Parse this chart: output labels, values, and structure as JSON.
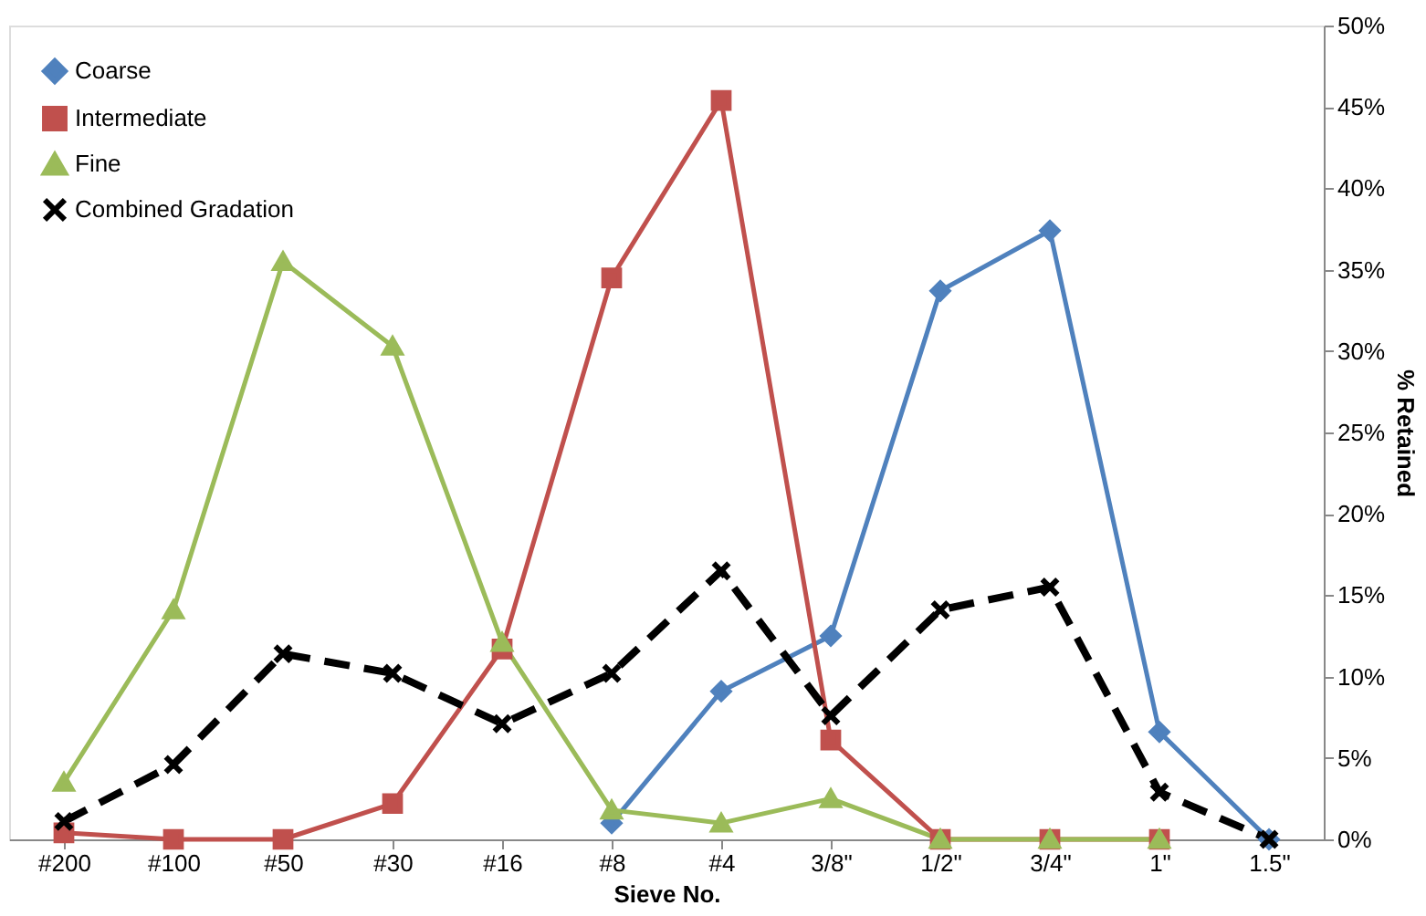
{
  "chart_data": {
    "type": "line",
    "xlabel": "Sieve No.",
    "ylabel": "% Retained",
    "categories": [
      "#200",
      "#100",
      "#50",
      "#30",
      "#16",
      "#8",
      "#4",
      "3/8\"",
      "1/2\"",
      "3/4\"",
      "1\"",
      "1.5\""
    ],
    "series": [
      {
        "name": "Coarse",
        "color": "#4f81bd",
        "marker": "diamond",
        "line_style": "solid",
        "values": [
          null,
          null,
          null,
          null,
          null,
          1.0,
          9.1,
          12.5,
          33.7,
          37.4,
          6.6,
          0
        ]
      },
      {
        "name": "Intermediate",
        "color": "#c0504d",
        "marker": "square",
        "line_style": "solid",
        "values": [
          0.4,
          0,
          0,
          2.2,
          11.7,
          34.5,
          45.4,
          6.1,
          0,
          0,
          0,
          null
        ]
      },
      {
        "name": "Fine",
        "color": "#9bbb59",
        "marker": "triangle",
        "line_style": "solid",
        "values": [
          3.5,
          14.1,
          35.5,
          30.3,
          12.1,
          1.8,
          1.0,
          2.5,
          0,
          0,
          0,
          null
        ]
      },
      {
        "name": "Combined Gradation",
        "color": "#000000",
        "marker": "cross",
        "line_style": "dashed",
        "values": [
          1.1,
          4.6,
          11.4,
          10.2,
          7.1,
          10.2,
          16.5,
          7.6,
          14.1,
          15.5,
          2.9,
          0
        ]
      }
    ],
    "ylim": [
      0,
      50
    ],
    "yticks": [
      {
        "value": 0,
        "label": "0%"
      },
      {
        "value": 5,
        "label": "5%"
      },
      {
        "value": 10,
        "label": "10%"
      },
      {
        "value": 15,
        "label": "15%"
      },
      {
        "value": 20,
        "label": "20%"
      },
      {
        "value": 25,
        "label": "25%"
      },
      {
        "value": 30,
        "label": "30%"
      },
      {
        "value": 35,
        "label": "35%"
      },
      {
        "value": 40,
        "label": "40%"
      },
      {
        "value": 45,
        "label": "45%"
      },
      {
        "value": 50,
        "label": "50%"
      }
    ],
    "grid": false,
    "legend": "top left"
  }
}
